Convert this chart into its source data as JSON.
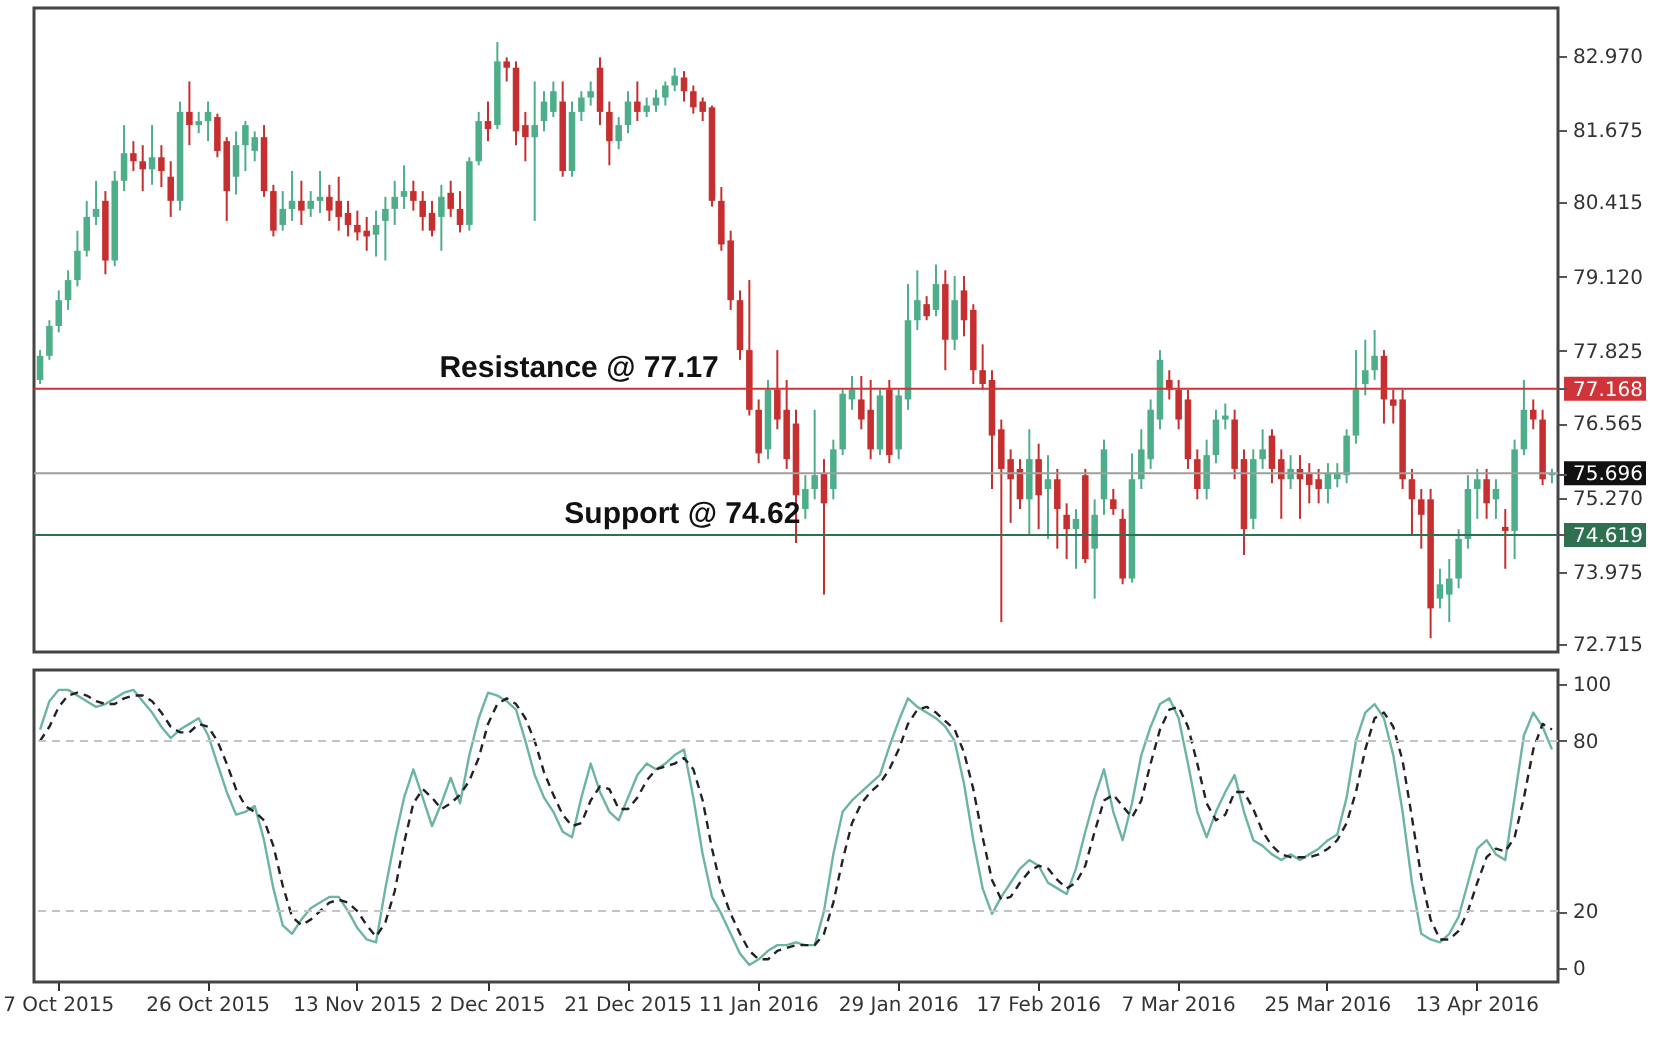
{
  "chart_data": [
    {
      "type": "candlestick",
      "tick_labels": "y",
      "ylim": [
        72.58,
        83.8
      ],
      "yticks": [
        72.715,
        73.975,
        74.619,
        {
          "value": 75.27,
          "label": "75.270"
        },
        75.696,
        76.565,
        77.168,
        77.825,
        {
          "value": 79.12,
          "label": "79.120"
        },
        80.415,
        81.675,
        {
          "value": 82.97,
          "label": "82.970"
        }
      ],
      "ref_lines": [
        {
          "axis": "y",
          "value": 77.168,
          "label": "Resistance @ 77.17",
          "color": "#d0343a"
        },
        {
          "axis": "y",
          "value": 74.619,
          "label": "Support @ 74.62",
          "color": "#2f7050"
        },
        {
          "axis": "y",
          "value": 75.696,
          "color": "#9e9e9e"
        }
      ],
      "categories": [
        null,
        null,
        null,
        null,
        null,
        null,
        null,
        null,
        null,
        null,
        null,
        null,
        null,
        null,
        null,
        null,
        null,
        null,
        null,
        null,
        null,
        null,
        null,
        null,
        null,
        null,
        null,
        null,
        null,
        null,
        null,
        null,
        null,
        null,
        null,
        null,
        null,
        null,
        null,
        null,
        null,
        null,
        null,
        null,
        null,
        null,
        null,
        null,
        null,
        null,
        null,
        null,
        null,
        null,
        null,
        null,
        null,
        null,
        null,
        null,
        null,
        null,
        null,
        null,
        null,
        null,
        null,
        null,
        null,
        null,
        null,
        null,
        null,
        null,
        null,
        null,
        null,
        null,
        null,
        null,
        null,
        null,
        null,
        null,
        null,
        null,
        null,
        null,
        null,
        null,
        null,
        null,
        null,
        null,
        null,
        null,
        null,
        null,
        null,
        null,
        null,
        null,
        null,
        null,
        null,
        null,
        null,
        null,
        null,
        null,
        null,
        null,
        null,
        null,
        null,
        null,
        null,
        null,
        null,
        null,
        null,
        null,
        null,
        null,
        null,
        null,
        null,
        null,
        null,
        null,
        null,
        null,
        null,
        null,
        null,
        null,
        null,
        null,
        null,
        null,
        null,
        null,
        null,
        null,
        null,
        null,
        null,
        null,
        null,
        null,
        null,
        null,
        null,
        null,
        null,
        null,
        null,
        null,
        null,
        null,
        null,
        null,
        null
      ],
      "ohlc": [
        [
          77.32,
          77.84,
          77.25,
          77.74
        ],
        [
          77.74,
          78.36,
          77.67,
          78.26
        ],
        [
          78.26,
          78.88,
          78.15,
          78.71
        ],
        [
          78.71,
          79.23,
          78.54,
          79.06
        ],
        [
          79.06,
          79.92,
          78.95,
          79.57
        ],
        [
          79.57,
          80.44,
          79.47,
          80.16
        ],
        [
          80.16,
          80.79,
          80.02,
          80.3
        ],
        [
          80.44,
          80.61,
          79.16,
          79.4
        ],
        [
          79.4,
          80.96,
          79.3,
          80.79
        ],
        [
          80.79,
          81.76,
          80.61,
          81.27
        ],
        [
          81.27,
          81.48,
          80.96,
          81.13
        ],
        [
          81.13,
          81.41,
          80.61,
          80.99
        ],
        [
          80.99,
          81.76,
          80.72,
          81.2
        ],
        [
          81.2,
          81.41,
          80.68,
          80.96
        ],
        [
          80.86,
          81.13,
          80.16,
          80.44
        ],
        [
          80.44,
          82.17,
          80.27,
          81.99
        ],
        [
          81.99,
          82.52,
          81.41,
          81.76
        ],
        [
          81.76,
          81.99,
          81.62,
          81.83
        ],
        [
          81.83,
          82.17,
          81.48,
          81.99
        ],
        [
          81.9,
          81.96,
          81.2,
          81.31
        ],
        [
          81.48,
          81.55,
          80.09,
          80.61
        ],
        [
          80.86,
          81.65,
          80.55,
          81.41
        ],
        [
          81.41,
          81.83,
          80.96,
          81.76
        ],
        [
          81.31,
          81.65,
          81.13,
          81.55
        ],
        [
          81.55,
          81.76,
          80.51,
          80.61
        ],
        [
          80.61,
          80.72,
          79.82,
          79.92
        ],
        [
          80.02,
          80.61,
          79.92,
          80.3
        ],
        [
          80.3,
          80.96,
          80.09,
          80.44
        ],
        [
          80.44,
          80.79,
          80.02,
          80.27
        ],
        [
          80.3,
          80.61,
          80.16,
          80.44
        ],
        [
          80.44,
          80.96,
          80.23,
          80.51
        ],
        [
          80.51,
          80.72,
          80.09,
          80.27
        ],
        [
          80.44,
          80.86,
          79.92,
          80.16
        ],
        [
          80.23,
          80.44,
          79.82,
          80.02
        ],
        [
          80.02,
          80.27,
          79.75,
          79.89
        ],
        [
          79.92,
          80.16,
          79.57,
          79.82
        ],
        [
          79.85,
          80.27,
          79.47,
          80.02
        ],
        [
          80.09,
          80.51,
          79.4,
          80.3
        ],
        [
          80.3,
          80.79,
          80.02,
          80.51
        ],
        [
          80.51,
          81.06,
          80.3,
          80.61
        ],
        [
          80.61,
          80.79,
          80.27,
          80.44
        ],
        [
          80.44,
          80.61,
          79.92,
          80.16
        ],
        [
          80.23,
          80.44,
          79.82,
          79.92
        ],
        [
          80.16,
          80.72,
          79.57,
          80.51
        ],
        [
          80.58,
          80.79,
          80.16,
          80.3
        ],
        [
          80.3,
          80.61,
          79.89,
          80.02
        ],
        [
          80.02,
          81.2,
          79.92,
          81.13
        ],
        [
          81.13,
          81.99,
          81.06,
          81.83
        ],
        [
          81.83,
          82.17,
          81.48,
          81.69
        ],
        [
          81.76,
          83.21,
          81.69,
          82.87
        ],
        [
          82.87,
          82.94,
          82.52,
          82.76
        ],
        [
          82.76,
          82.87,
          81.41,
          81.65
        ],
        [
          81.76,
          81.99,
          81.13,
          81.55
        ],
        [
          81.55,
          82.52,
          80.09,
          81.76
        ],
        [
          81.83,
          82.35,
          81.65,
          82.17
        ],
        [
          81.99,
          82.52,
          81.9,
          82.35
        ],
        [
          82.17,
          82.52,
          80.86,
          80.96
        ],
        [
          80.96,
          82.17,
          80.86,
          81.99
        ],
        [
          81.99,
          82.35,
          81.83,
          82.24
        ],
        [
          82.24,
          82.52,
          82.1,
          82.35
        ],
        [
          82.76,
          82.94,
          81.76,
          81.99
        ],
        [
          81.99,
          82.17,
          81.06,
          81.48
        ],
        [
          81.48,
          81.9,
          81.34,
          81.76
        ],
        [
          81.76,
          82.35,
          81.62,
          82.17
        ],
        [
          82.17,
          82.52,
          81.83,
          81.99
        ],
        [
          81.99,
          82.24,
          81.9,
          82.1
        ],
        [
          82.1,
          82.38,
          81.99,
          82.24
        ],
        [
          82.24,
          82.52,
          82.1,
          82.45
        ],
        [
          82.45,
          82.76,
          82.35,
          82.62
        ],
        [
          82.59,
          82.7,
          82.17,
          82.35
        ],
        [
          82.35,
          82.45,
          81.96,
          82.07
        ],
        [
          82.17,
          82.24,
          81.83,
          81.99
        ],
        [
          82.07,
          82.1,
          80.34,
          80.44
        ],
        [
          80.44,
          80.68,
          79.57,
          79.68
        ],
        [
          79.75,
          79.92,
          78.54,
          78.71
        ],
        [
          78.71,
          78.88,
          77.67,
          77.84
        ],
        [
          77.84,
          79.06,
          76.7,
          76.8
        ],
        [
          76.8,
          76.98,
          75.87,
          76.04
        ],
        [
          76.11,
          77.32,
          75.94,
          77.15
        ],
        [
          77.15,
          77.84,
          76.46,
          76.63
        ],
        [
          76.8,
          77.32,
          75.77,
          75.94
        ],
        [
          76.56,
          76.8,
          74.48,
          75.31
        ],
        [
          75.07,
          75.66,
          74.9,
          75.42
        ],
        [
          75.42,
          76.8,
          75.24,
          75.66
        ],
        [
          75.69,
          75.94,
          73.58,
          75.17
        ],
        [
          75.42,
          76.28,
          75.24,
          76.11
        ],
        [
          76.11,
          77.15,
          76.01,
          77.08
        ],
        [
          76.98,
          77.39,
          76.8,
          77.15
        ],
        [
          76.98,
          77.39,
          76.46,
          76.63
        ],
        [
          76.8,
          77.32,
          75.94,
          76.11
        ],
        [
          76.11,
          77.15,
          76.01,
          77.05
        ],
        [
          77.15,
          77.32,
          75.87,
          76.01
        ],
        [
          76.11,
          77.15,
          75.94,
          77.05
        ],
        [
          76.98,
          78.99,
          76.8,
          78.36
        ],
        [
          78.36,
          79.23,
          78.19,
          78.71
        ],
        [
          78.64,
          78.78,
          78.36,
          78.43
        ],
        [
          78.54,
          79.33,
          78.43,
          78.99
        ],
        [
          78.99,
          79.23,
          77.49,
          78.02
        ],
        [
          78.02,
          79.13,
          77.84,
          78.71
        ],
        [
          78.88,
          79.13,
          78.08,
          78.36
        ],
        [
          78.54,
          78.64,
          77.25,
          77.49
        ],
        [
          77.49,
          77.94,
          77.15,
          77.25
        ],
        [
          77.32,
          77.49,
          75.42,
          76.35
        ],
        [
          76.46,
          76.63,
          73.1,
          75.77
        ],
        [
          75.94,
          76.11,
          74.83,
          75.59
        ],
        [
          75.77,
          75.94,
          75.07,
          75.24
        ],
        [
          75.24,
          76.46,
          74.62,
          75.94
        ],
        [
          75.94,
          76.21,
          74.72,
          75.31
        ],
        [
          75.42,
          76.01,
          74.55,
          75.59
        ],
        [
          75.59,
          75.77,
          74.38,
          75.07
        ],
        [
          74.97,
          75.17,
          74.2,
          74.72
        ],
        [
          74.72,
          75.07,
          74.03,
          74.9
        ],
        [
          75.66,
          75.77,
          74.13,
          74.2
        ],
        [
          74.38,
          75.24,
          73.51,
          74.97
        ],
        [
          75.24,
          76.28,
          74.97,
          76.11
        ],
        [
          75.24,
          75.42,
          74.97,
          75.07
        ],
        [
          74.9,
          75.07,
          73.76,
          73.86
        ],
        [
          73.86,
          76.04,
          73.79,
          75.59
        ],
        [
          75.59,
          76.46,
          75.42,
          76.11
        ],
        [
          75.94,
          76.98,
          75.77,
          76.8
        ],
        [
          76.63,
          77.84,
          76.46,
          77.67
        ],
        [
          77.32,
          77.49,
          76.98,
          77.15
        ],
        [
          77.15,
          77.32,
          76.46,
          76.63
        ],
        [
          76.98,
          77.15,
          75.77,
          75.94
        ],
        [
          75.94,
          76.11,
          75.24,
          75.42
        ],
        [
          75.42,
          76.28,
          75.24,
          76.01
        ],
        [
          76.01,
          76.8,
          75.87,
          76.63
        ],
        [
          76.63,
          76.91,
          76.46,
          76.7
        ],
        [
          76.63,
          76.8,
          75.59,
          75.77
        ],
        [
          75.94,
          76.11,
          74.27,
          74.72
        ],
        [
          74.9,
          76.11,
          74.72,
          75.94
        ],
        [
          75.94,
          76.46,
          75.77,
          76.11
        ],
        [
          76.35,
          76.46,
          75.52,
          75.77
        ],
        [
          75.94,
          76.11,
          74.9,
          75.59
        ],
        [
          75.59,
          76.01,
          75.42,
          75.77
        ],
        [
          75.77,
          76.01,
          74.9,
          75.59
        ],
        [
          75.69,
          75.87,
          75.17,
          75.49
        ],
        [
          75.59,
          75.77,
          75.17,
          75.42
        ],
        [
          75.42,
          75.87,
          75.17,
          75.69
        ],
        [
          75.59,
          75.87,
          75.45,
          75.69
        ],
        [
          75.66,
          76.46,
          75.52,
          76.35
        ],
        [
          76.35,
          77.84,
          76.21,
          77.15
        ],
        [
          77.25,
          78.02,
          77.05,
          77.49
        ],
        [
          77.49,
          78.19,
          77.32,
          77.74
        ],
        [
          77.74,
          77.84,
          76.56,
          76.98
        ],
        [
          76.98,
          77.15,
          76.56,
          76.87
        ],
        [
          76.98,
          77.15,
          75.42,
          75.59
        ],
        [
          75.59,
          75.77,
          74.62,
          75.24
        ],
        [
          75.24,
          75.42,
          74.38,
          74.97
        ],
        [
          75.24,
          75.42,
          72.82,
          73.34
        ],
        [
          73.51,
          74.03,
          73.34,
          73.76
        ],
        [
          73.58,
          74.2,
          73.1,
          73.86
        ],
        [
          73.86,
          74.72,
          73.69,
          74.55
        ],
        [
          74.55,
          75.66,
          74.38,
          75.42
        ],
        [
          75.42,
          75.77,
          74.9,
          75.59
        ],
        [
          75.59,
          75.77,
          74.9,
          75.17
        ],
        [
          75.24,
          75.59,
          74.9,
          75.42
        ],
        [
          74.76,
          75.07,
          74.03,
          74.69
        ],
        [
          74.69,
          76.28,
          74.2,
          76.11
        ],
        [
          76.11,
          77.32,
          76.01,
          76.8
        ],
        [
          76.8,
          76.98,
          76.46,
          76.63
        ],
        [
          76.63,
          76.8,
          75.49,
          75.59
        ],
        [
          75.66,
          75.77,
          75.52,
          75.7
        ]
      ],
      "colors": [
        "#4fae8a",
        "#4fae8a",
        "#4fae8a",
        "#4fae8a",
        "#4fae8a",
        "#4fae8a",
        "#4fae8a",
        "#c62f2f",
        "#4fae8a",
        "#4fae8a",
        "#c62f2f",
        "#c62f2f",
        "#4fae8a",
        "#c62f2f",
        "#c62f2f",
        "#4fae8a",
        "#c62f2f",
        "#4fae8a",
        "#4fae8a",
        "#c62f2f",
        "#c62f2f",
        "#4fae8a",
        "#4fae8a",
        "#4fae8a",
        "#c62f2f",
        "#c62f2f",
        "#4fae8a",
        "#4fae8a",
        "#c62f2f",
        "#4fae8a",
        "#4fae8a",
        "#c62f2f",
        "#c62f2f",
        "#c62f2f",
        "#c62f2f",
        "#c62f2f",
        "#4fae8a",
        "#4fae8a",
        "#4fae8a",
        "#4fae8a",
        "#c62f2f",
        "#c62f2f",
        "#c62f2f",
        "#4fae8a",
        "#c62f2f",
        "#c62f2f",
        "#4fae8a",
        "#4fae8a",
        "#c62f2f",
        "#4fae8a",
        "#c62f2f",
        "#c62f2f",
        "#c62f2f",
        "#4fae8a",
        "#4fae8a",
        "#4fae8a",
        "#c62f2f",
        "#4fae8a",
        "#4fae8a",
        "#4fae8a",
        "#c62f2f",
        "#c62f2f",
        "#4fae8a",
        "#4fae8a",
        "#c62f2f",
        "#4fae8a",
        "#4fae8a",
        "#4fae8a",
        "#4fae8a",
        "#c62f2f",
        "#c62f2f",
        "#c62f2f",
        "#c62f2f",
        "#c62f2f",
        "#c62f2f",
        "#c62f2f",
        "#c62f2f",
        "#c62f2f",
        "#4fae8a",
        "#c62f2f",
        "#c62f2f",
        "#c62f2f",
        "#4fae8a",
        "#4fae8a",
        "#c62f2f",
        "#4fae8a",
        "#4fae8a",
        "#4fae8a",
        "#c62f2f",
        "#c62f2f",
        "#4fae8a",
        "#c62f2f",
        "#4fae8a",
        "#4fae8a",
        "#4fae8a",
        "#c62f2f",
        "#4fae8a",
        "#c62f2f",
        "#4fae8a",
        "#c62f2f",
        "#c62f2f",
        "#c62f2f",
        "#c62f2f",
        "#c62f2f",
        "#c62f2f",
        "#c62f2f",
        "#4fae8a",
        "#c62f2f",
        "#4fae8a",
        "#c62f2f",
        "#c62f2f",
        "#4fae8a",
        "#c62f2f",
        "#4fae8a",
        "#4fae8a",
        "#c62f2f",
        "#c62f2f",
        "#4fae8a",
        "#4fae8a",
        "#4fae8a",
        "#4fae8a",
        "#c62f2f",
        "#c62f2f",
        "#c62f2f",
        "#c62f2f",
        "#4fae8a",
        "#4fae8a",
        "#4fae8a",
        "#c62f2f",
        "#c62f2f",
        "#4fae8a",
        "#4fae8a",
        "#c62f2f",
        "#c62f2f",
        "#4fae8a",
        "#c62f2f",
        "#c62f2f",
        "#c62f2f",
        "#4fae8a",
        "#4fae8a",
        "#4fae8a",
        "#4fae8a",
        "#4fae8a",
        "#4fae8a",
        "#c62f2f",
        "#c62f2f",
        "#c62f2f",
        "#c62f2f",
        "#c62f2f",
        "#c62f2f",
        "#4fae8a",
        "#4fae8a",
        "#4fae8a",
        "#4fae8a",
        "#4fae8a",
        "#c62f2f",
        "#4fae8a",
        "#c62f2f",
        "#4fae8a",
        "#4fae8a",
        "#c62f2f",
        "#c62f2f",
        "#4fae8a"
      ]
    },
    {
      "type": "line",
      "ylim": [
        -5,
        105
      ],
      "yticks": [
        0,
        20,
        80,
        100
      ],
      "ref_lines": [
        {
          "axis": "y",
          "value": 20,
          "color": "#c4c4c4",
          "line_style": "dashed"
        },
        {
          "axis": "y",
          "value": 80,
          "color": "#c4c4c4",
          "line_style": "dashed"
        }
      ],
      "categories": [
        null,
        null,
        "7 Oct 2015",
        null,
        null,
        null,
        null,
        null,
        null,
        null,
        null,
        null,
        null,
        null,
        null,
        null,
        null,
        null,
        "26 Oct 2015",
        null,
        null,
        null,
        null,
        null,
        null,
        null,
        null,
        null,
        null,
        null,
        null,
        null,
        null,
        null,
        "13 Nov 2015",
        null,
        null,
        null,
        null,
        null,
        null,
        null,
        null,
        null,
        null,
        null,
        null,
        null,
        "2 Dec 2015",
        null,
        null,
        null,
        null,
        null,
        null,
        null,
        null,
        null,
        null,
        null,
        null,
        null,
        null,
        "21 Dec 2015",
        null,
        null,
        null,
        null,
        null,
        null,
        null,
        null,
        null,
        null,
        null,
        null,
        null,
        "11 Jan 2016",
        null,
        null,
        null,
        null,
        null,
        null,
        null,
        null,
        null,
        null,
        null,
        null,
        null,
        null,
        "29 Jan 2016",
        null,
        null,
        null,
        null,
        null,
        null,
        null,
        null,
        null,
        null,
        null,
        null,
        null,
        null,
        "17 Feb 2016",
        null,
        null,
        null,
        null,
        null,
        null,
        null,
        null,
        null,
        null,
        null,
        null,
        null,
        null,
        "7 Mar 2016",
        null,
        null,
        null,
        null,
        null,
        null,
        null,
        null,
        null,
        null,
        null,
        null,
        null,
        null,
        null,
        "25 Mar 2016",
        null,
        null,
        null,
        null,
        null,
        null,
        null,
        null,
        null,
        null,
        null,
        null,
        null,
        null,
        null,
        "13 Apr 2016",
        null,
        null,
        null,
        null,
        null,
        null,
        null,
        null
      ],
      "series": [
        {
          "color": "#6cb4a4",
          "line_style": "solid",
          "values": [
            84,
            94,
            98,
            98,
            96,
            94,
            92,
            93,
            95,
            97,
            98,
            94,
            90,
            85,
            81,
            84,
            86,
            88,
            82,
            72,
            62,
            54,
            55,
            57,
            45,
            28,
            15,
            12,
            17,
            21,
            23,
            25,
            25,
            20,
            14,
            10,
            9,
            28,
            45,
            60,
            70,
            60,
            50,
            58,
            67,
            58,
            75,
            88,
            97,
            96,
            94,
            91,
            80,
            68,
            60,
            55,
            48,
            46,
            60,
            72,
            62,
            55,
            52,
            60,
            68,
            72,
            70,
            72,
            75,
            77,
            60,
            40,
            25,
            19,
            12,
            5,
            1,
            3,
            6,
            8,
            8,
            9,
            8,
            8,
            20,
            40,
            55,
            59,
            62,
            65,
            68,
            78,
            87,
            95,
            92,
            90,
            88,
            85,
            80,
            65,
            45,
            28,
            19,
            25,
            30,
            35,
            38,
            36,
            30,
            28,
            26,
            35,
            48,
            60,
            70,
            55,
            45,
            58,
            75,
            85,
            93,
            95,
            88,
            72,
            55,
            46,
            55,
            62,
            68,
            55,
            45,
            43,
            40,
            38,
            40,
            38,
            40,
            42,
            45,
            47,
            60,
            80,
            90,
            93,
            88,
            75,
            55,
            30,
            12,
            10,
            9,
            12,
            18,
            30,
            42,
            45,
            40,
            38,
            60,
            82,
            90,
            85,
            77
          ]
        },
        {
          "color": "#222222",
          "line_style": "dashed",
          "values": [
            80,
            85,
            92,
            96,
            97,
            96,
            94,
            93,
            93,
            95,
            96,
            96,
            94,
            90,
            85,
            83,
            83,
            86,
            85,
            80,
            72,
            63,
            57,
            55,
            52,
            43,
            29,
            18,
            15,
            17,
            20,
            23,
            24,
            23,
            20,
            15,
            11,
            16,
            27,
            44,
            58,
            63,
            60,
            56,
            58,
            61,
            66,
            74,
            86,
            93,
            95,
            93,
            88,
            80,
            69,
            61,
            54,
            50,
            51,
            59,
            64,
            63,
            56,
            56,
            60,
            66,
            70,
            71,
            72,
            74,
            70,
            59,
            42,
            28,
            19,
            12,
            6,
            3,
            3,
            6,
            7,
            8,
            8,
            8,
            12,
            23,
            38,
            51,
            58,
            62,
            65,
            70,
            77,
            86,
            91,
            92,
            90,
            87,
            84,
            76,
            63,
            46,
            31,
            24,
            25,
            30,
            34,
            36,
            35,
            31,
            28,
            30,
            36,
            48,
            59,
            61,
            57,
            53,
            59,
            72,
            84,
            91,
            92,
            85,
            72,
            58,
            52,
            54,
            62,
            62,
            56,
            48,
            43,
            40,
            39,
            39,
            39,
            40,
            42,
            45,
            51,
            62,
            77,
            88,
            90,
            85,
            73,
            53,
            32,
            17,
            10,
            10,
            13,
            20,
            30,
            39,
            42,
            41,
            46,
            60,
            77,
            86,
            84
          ]
        }
      ]
    }
  ]
}
